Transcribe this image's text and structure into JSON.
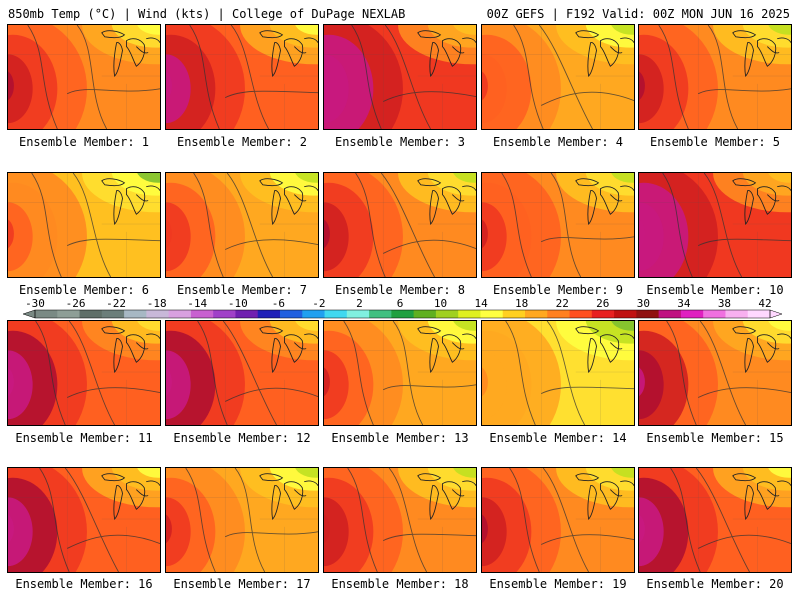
{
  "header": {
    "left": "850mb Temp (°C) | Wind (kts) | College of DuPage NEXLAB",
    "right": "00Z GEFS | F192 Valid: 00Z MON JUN 16 2025"
  },
  "caption_prefix": "Ensemble Member:",
  "members": [
    {
      "id": "1",
      "warmth": 0.55,
      "hot_core": 0.6
    },
    {
      "id": "2",
      "warmth": 0.6,
      "hot_core": 0.8
    },
    {
      "id": "3",
      "warmth": 0.7,
      "hot_core": 1.0
    },
    {
      "id": "4",
      "warmth": 0.45,
      "hot_core": 0.3
    },
    {
      "id": "5",
      "warmth": 0.5,
      "hot_core": 0.7
    },
    {
      "id": "6",
      "warmth": 0.4,
      "hot_core": 0.5
    },
    {
      "id": "7",
      "warmth": 0.45,
      "hot_core": 0.4
    },
    {
      "id": "8",
      "warmth": 0.5,
      "hot_core": 0.7
    },
    {
      "id": "9",
      "warmth": 0.5,
      "hot_core": 0.4
    },
    {
      "id": "10",
      "warmth": 0.7,
      "hot_core": 0.9
    },
    {
      "id": "11",
      "warmth": 0.65,
      "hot_core": 0.95
    },
    {
      "id": "12",
      "warmth": 0.65,
      "hot_core": 0.95
    },
    {
      "id": "13",
      "warmth": 0.45,
      "hot_core": 0.5
    },
    {
      "id": "14",
      "warmth": 0.3,
      "hot_core": 0.2
    },
    {
      "id": "15",
      "warmth": 0.55,
      "hot_core": 0.8
    },
    {
      "id": "16",
      "warmth": 0.6,
      "hot_core": 0.85
    },
    {
      "id": "17",
      "warmth": 0.45,
      "hot_core": 0.6
    },
    {
      "id": "18",
      "warmth": 0.5,
      "hot_core": 0.5
    },
    {
      "id": "19",
      "warmth": 0.5,
      "hot_core": 0.7
    },
    {
      "id": "20",
      "warmth": 0.6,
      "hot_core": 0.9
    }
  ],
  "colorbar": {
    "labels": [
      "-30",
      "-26",
      "-22",
      "-18",
      "-14",
      "-10",
      "-6",
      "-2",
      "2",
      "6",
      "10",
      "14",
      "18",
      "22",
      "26",
      "30",
      "34",
      "38",
      "42"
    ],
    "colors": [
      "#7a8a84",
      "#8e9e96",
      "#5f6f68",
      "#6b7e7a",
      "#a7b8c4",
      "#c8b8d8",
      "#d8a0e0",
      "#c860d0",
      "#a040c8",
      "#7020b0",
      "#2020b8",
      "#2060e0",
      "#20a0f0",
      "#40d8f0",
      "#80f0e0",
      "#40c080",
      "#20a040",
      "#60b020",
      "#a0d020",
      "#e0f020",
      "#ffff40",
      "#ffd020",
      "#ffa820",
      "#ff8020",
      "#ff5020",
      "#e82020",
      "#c01010",
      "#901010",
      "#c01080",
      "#e020c0",
      "#f070e0",
      "#f8b0f0",
      "#ffd8ff"
    ]
  }
}
